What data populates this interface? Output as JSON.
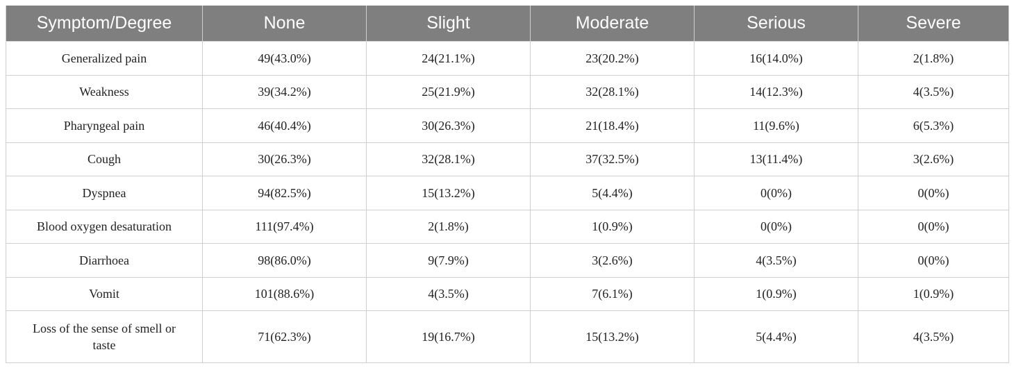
{
  "table": {
    "headers": [
      "Symptom/Degree",
      "None",
      "Slight",
      "Moderate",
      "Serious",
      "Severe"
    ],
    "rows": [
      [
        "Generalized pain",
        "49(43.0%)",
        "24(21.1%)",
        "23(20.2%)",
        "16(14.0%)",
        "2(1.8%)"
      ],
      [
        "Weakness",
        "39(34.2%)",
        "25(21.9%)",
        "32(28.1%)",
        "14(12.3%)",
        "4(3.5%)"
      ],
      [
        "Pharyngeal pain",
        "46(40.4%)",
        "30(26.3%)",
        "21(18.4%)",
        "11(9.6%)",
        "6(5.3%)"
      ],
      [
        "Cough",
        "30(26.3%)",
        "32(28.1%)",
        "37(32.5%)",
        "13(11.4%)",
        "3(2.6%)"
      ],
      [
        "Dyspnea",
        "94(82.5%)",
        "15(13.2%)",
        "5(4.4%)",
        "0(0%)",
        "0(0%)"
      ],
      [
        "Blood oxygen desaturation",
        "111(97.4%)",
        "2(1.8%)",
        "1(0.9%)",
        "0(0%)",
        "0(0%)"
      ],
      [
        "Diarrhoea",
        "98(86.0%)",
        "9(7.9%)",
        "3(2.6%)",
        "4(3.5%)",
        "0(0%)"
      ],
      [
        "Vomit",
        "101(88.6%)",
        "4(3.5%)",
        "7(6.1%)",
        "1(0.9%)",
        "1(0.9%)"
      ],
      [
        "Loss of the sense of smell or taste",
        "71(62.3%)",
        "19(16.7%)",
        "15(13.2%)",
        "5(4.4%)",
        "4(3.5%)"
      ]
    ]
  }
}
